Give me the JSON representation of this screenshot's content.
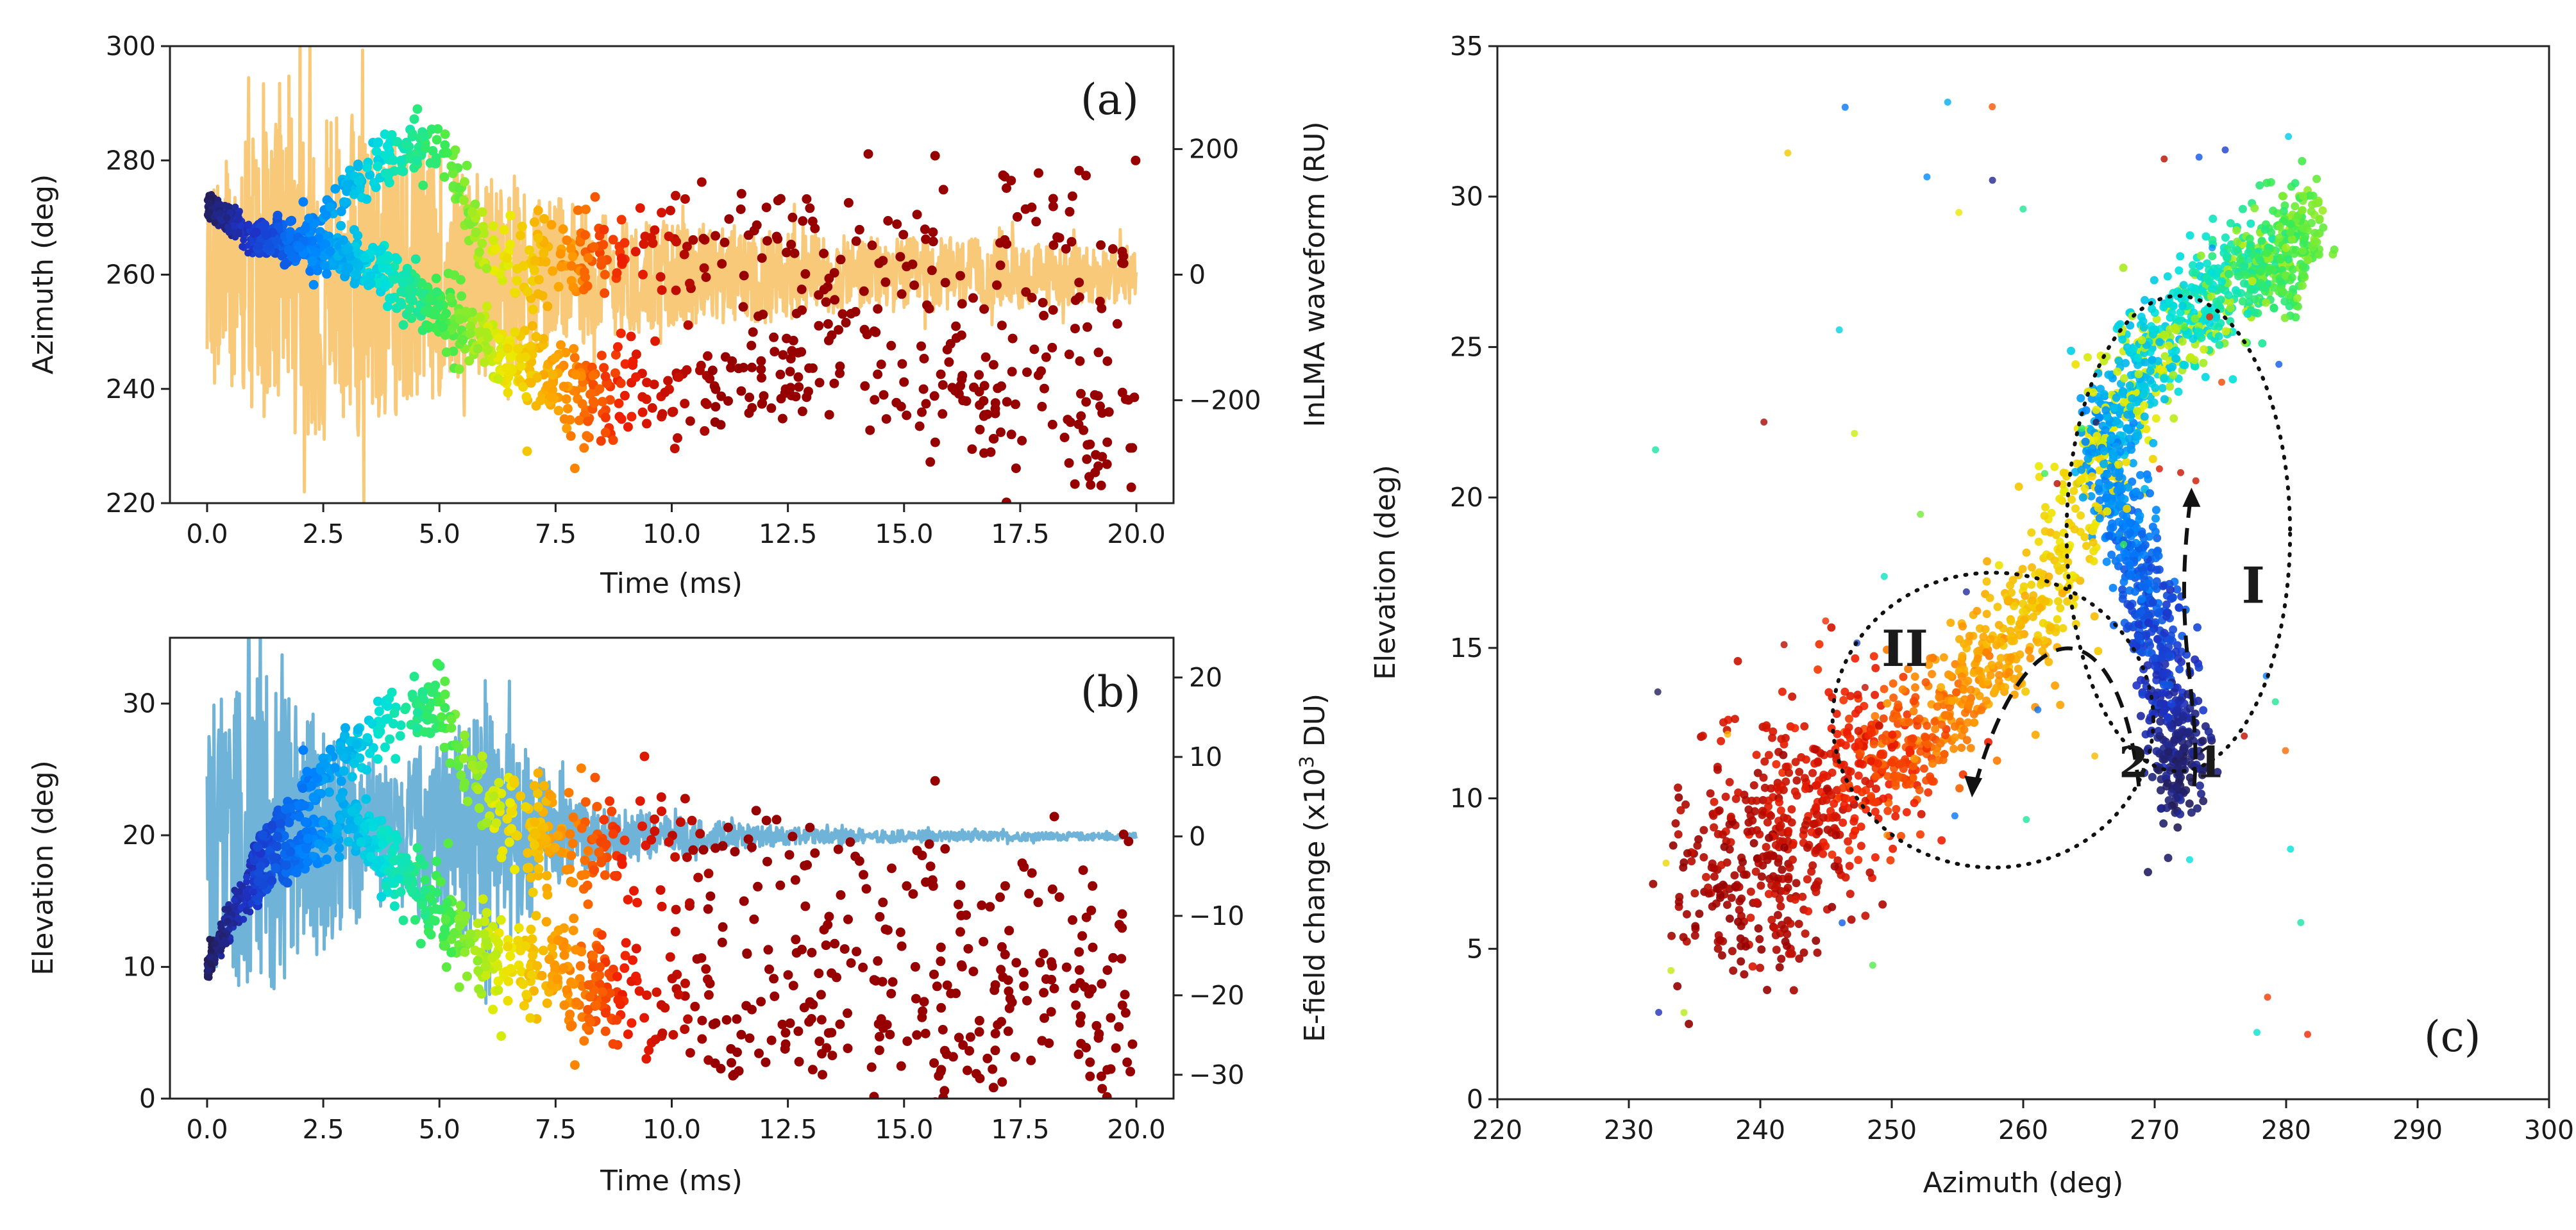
{
  "chart_data": [
    {
      "id": "a",
      "type": "scatter",
      "panel_label": "(a)",
      "xlabel": "Time (ms)",
      "ylabel": "Azimuth (deg)",
      "y2label": "InLMA waveform (RU)",
      "xlim": [
        -0.8,
        20.8
      ],
      "ylim": [
        220,
        300
      ],
      "y2lim": [
        -364,
        364
      ],
      "xticks": [
        "0.0",
        "2.5",
        "5.0",
        "7.5",
        "10.0",
        "12.5",
        "15.0",
        "17.5",
        "20.0"
      ],
      "yticks": [
        "220",
        "240",
        "260",
        "280",
        "300"
      ],
      "y2ticks": [
        "200",
        "0",
        "−200"
      ],
      "y2tick_values": [
        200,
        0,
        -200
      ],
      "grid": false,
      "series": [
        {
          "kind": "waveform",
          "color": "#f9c97a",
          "envelope_t": [
            0,
            1,
            2,
            3,
            4,
            5,
            6,
            7,
            8,
            10,
            12,
            14,
            16,
            18,
            20
          ],
          "envelope_amp": [
            200,
            270,
            300,
            320,
            270,
            230,
            190,
            160,
            130,
            100,
            90,
            70,
            70,
            60,
            55
          ]
        },
        {
          "kind": "points",
          "colormap": "jet-dark",
          "upper_branch_t": [
            0,
            1,
            2,
            3,
            4,
            5,
            6,
            7,
            8,
            10,
            12,
            14,
            16,
            18,
            20
          ],
          "upper_branch_az": [
            272,
            266,
            266,
            275,
            281,
            284,
            263,
            262,
            263,
            264,
            264,
            264,
            264,
            264,
            264
          ],
          "lower_branch_t": [
            0,
            1,
            2,
            3,
            4,
            5,
            6,
            7,
            8,
            10,
            12,
            14,
            16,
            18,
            20
          ],
          "lower_branch_az": [
            272,
            267,
            265,
            263,
            259,
            254,
            248,
            242,
            238,
            240,
            243,
            245,
            240,
            238,
            235
          ]
        }
      ]
    },
    {
      "id": "b",
      "type": "scatter",
      "panel_label": "(b)",
      "xlabel": "Time (ms)",
      "ylabel": "Elevation (deg)",
      "y2label": "E-field change (x10",
      "y2label_sup": "3",
      "y2label_tail": " DU)",
      "xlim": [
        -0.8,
        20.8
      ],
      "ylim": [
        0,
        35
      ],
      "y2lim": [
        -33,
        25
      ],
      "xticks": [
        "0.0",
        "2.5",
        "5.0",
        "7.5",
        "10.0",
        "12.5",
        "15.0",
        "17.5",
        "20.0"
      ],
      "yticks": [
        "0",
        "10",
        "20",
        "30"
      ],
      "y2ticks": [
        "20",
        "10",
        "0",
        "−10",
        "−20",
        "−30"
      ],
      "y2tick_values": [
        20,
        10,
        0,
        -10,
        -20,
        -30
      ],
      "grid": false,
      "series": [
        {
          "kind": "waveform",
          "color": "#6fb3d9",
          "envelope_t": [
            0,
            1,
            2,
            3,
            4,
            5,
            6,
            7,
            8,
            10,
            12,
            14,
            16,
            18,
            20
          ],
          "envelope_amp": [
            20,
            26,
            20,
            14,
            10,
            14,
            20,
            12,
            5,
            3,
            1.5,
            1,
            0.8,
            0.6,
            0.5
          ]
        },
        {
          "kind": "points",
          "colormap": "jet-dark",
          "upper_branch_t": [
            0,
            1,
            2,
            3,
            4,
            5,
            6,
            7,
            8,
            10,
            12,
            14,
            16,
            18,
            20
          ],
          "upper_branch_el": [
            10,
            18,
            23,
            26,
            29,
            30,
            22,
            20,
            19,
            18,
            17,
            16,
            15,
            14,
            14
          ],
          "lower_branch_t": [
            0,
            1,
            2,
            3,
            4,
            5,
            6,
            7,
            8,
            10,
            12,
            14,
            16,
            18,
            20
          ],
          "lower_branch_el": [
            10,
            16,
            19,
            21,
            18,
            14,
            11,
            10,
            9,
            7,
            6,
            6,
            5,
            5,
            5
          ]
        }
      ]
    },
    {
      "id": "c",
      "type": "scatter",
      "panel_label": "(c)",
      "xlabel": "Azimuth (deg)",
      "ylabel": "Elevation (deg)",
      "xlim": [
        220,
        300
      ],
      "ylim": [
        0,
        35
      ],
      "xticks": [
        "220",
        "230",
        "240",
        "250",
        "260",
        "270",
        "280",
        "290",
        "300"
      ],
      "yticks": [
        "0",
        "5",
        "10",
        "15",
        "20",
        "25",
        "30",
        "35"
      ],
      "grid": false,
      "colormap": "jet-dark",
      "path_az": [
        272,
        271,
        270,
        268,
        266,
        270,
        275,
        279,
        282,
        268,
        262,
        257,
        252,
        248,
        243,
        240,
        238
      ],
      "path_el": [
        10,
        13,
        16,
        19,
        22,
        25,
        27,
        28,
        29,
        24,
        17,
        14,
        12,
        11,
        10,
        8,
        6
      ],
      "annotations": [
        {
          "text": "I",
          "az": 277.5,
          "el": 16.5
        },
        {
          "text": "II",
          "az": 251,
          "el": 14.4
        },
        {
          "text": "1",
          "az": 274.2,
          "el": 10.7
        },
        {
          "text": "2",
          "az": 268.4,
          "el": 10.7
        }
      ],
      "ellipses": [
        {
          "name": "region-I",
          "center_az": 271.8,
          "center_el": 18.8,
          "half_width_az": 8.5,
          "half_height_el": 7.9
        },
        {
          "name": "region-II",
          "center_az": 257.7,
          "center_el": 12.6,
          "half_width_az": 12.2,
          "half_height_el": 4.9
        }
      ],
      "arrows": [
        {
          "name": "arrow-1",
          "from_az": 273.0,
          "from_el": 10.4,
          "to_az": 272.8,
          "to_el": 20.2
        },
        {
          "name": "arrow-2",
          "from_az": 268.8,
          "from_el": 10.4,
          "to_az": 256.2,
          "to_el": 10.2
        }
      ]
    }
  ]
}
